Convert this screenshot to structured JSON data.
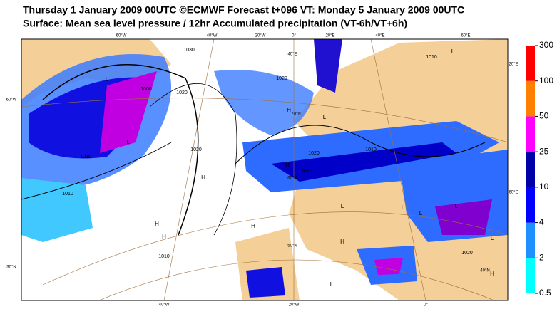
{
  "header": {
    "title": "Thursday 1 January 2009 00UTC ©ECMWF Forecast t+096 VT: Monday 5 January 2009 00UTC",
    "subtitle": "Surface: Mean sea level pressure / 12hr Accumulated precipitation (VT-6h/VT+6h)"
  },
  "legend": {
    "levels": [
      0.5,
      2,
      4,
      10,
      25,
      50,
      100,
      300
    ],
    "colors": [
      "#00ffff",
      "#1e90ff",
      "#0000ff",
      "#0000a8",
      "#ff00ff",
      "#ff8000",
      "#ff0000"
    ]
  },
  "grid_labels": [
    "60°W",
    "40°W",
    "20°W",
    "0°",
    "20°E",
    "40°E",
    "60°E",
    "60°W",
    "40°W",
    "20°W",
    "0°",
    "20°E",
    "60°E",
    "40°E",
    "70°N",
    "60°N",
    "50°N",
    "40°N",
    "30°N"
  ],
  "pressure_labels": [
    "1000",
    "1010",
    "1020",
    "1020",
    "1010",
    "1020",
    "1010",
    "1030",
    "1020",
    "1020",
    "1010",
    "1020",
    "1010"
  ],
  "centres": [
    "L",
    "L",
    "H",
    "H",
    "H",
    "L",
    "L",
    "H",
    "L",
    "L",
    "H",
    "L",
    "L",
    "H",
    "H",
    "L",
    "L",
    "H"
  ]
}
